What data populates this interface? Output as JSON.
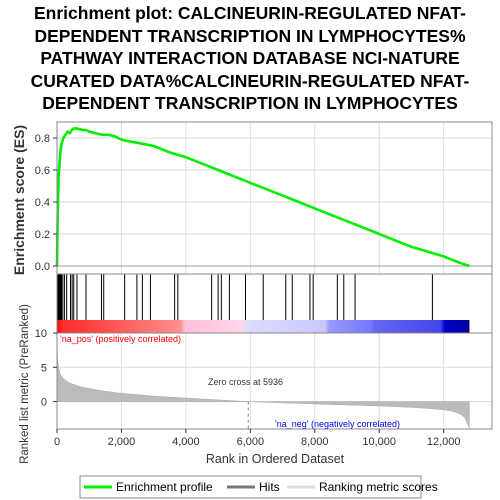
{
  "title_lines": [
    "Enrichment plot: CALCINEURIN-REGULATED NFAT-",
    "DEPENDENT TRANSCRIPTION IN LYMPHOCYTES%",
    "PATHWAY INTERACTION DATABASE NCI-NATURE",
    "CURATED DATA%CALCINEURIN-REGULATED NFAT-",
    "DEPENDENT TRANSCRIPTION IN LYMPHOCYTES"
  ],
  "colors": {
    "enrichment": "#00ee00",
    "hits": "#000000",
    "metric_fill": "#bbbbbb",
    "pos_label": "#ff0000",
    "neg_label": "#0000ff",
    "grid": "#dddddd"
  },
  "chart_data": {
    "type": "line",
    "ylabel": "Enrichment score (ES)",
    "xlabel": "Rank in Ordered Dataset",
    "ylabel_metric": "Ranked list metric (PreRanked)",
    "es_ylim": [
      -0.05,
      0.9
    ],
    "es_ticks": [
      0.0,
      0.2,
      0.4,
      0.6,
      0.8
    ],
    "es_tick_labels": [
      "0.0",
      "0.2",
      "0.4",
      "0.6",
      "0.8"
    ],
    "metric_ylim": [
      -4,
      10
    ],
    "metric_ticks": [
      10,
      5,
      0
    ],
    "metric_tick_labels": [
      "10",
      "5",
      "0"
    ],
    "xlim": [
      0,
      13500
    ],
    "x_ticks": [
      0,
      2000,
      4000,
      6000,
      8000,
      10000,
      12000
    ],
    "x_tick_labels": [
      "0",
      "2,000",
      "4,000",
      "6,000",
      "8,000",
      "10,000",
      "12,000"
    ],
    "grid": true,
    "legend_position": "bottom",
    "legend": [
      "Enrichment profile",
      "Hits",
      "Ranking metric scores"
    ],
    "zero_cross_label": "Zero cross at 5936",
    "pos_label": "'na_pos' (positively correlated)",
    "neg_label": "'na_neg' (negatively correlated)",
    "enrichment_profile": {
      "x": [
        0,
        20,
        50,
        80,
        110,
        150,
        200,
        260,
        330,
        400,
        460,
        520,
        600,
        700,
        800,
        900,
        1000,
        1200,
        1400,
        1600,
        1800,
        2000,
        2200,
        2500,
        3000,
        3500,
        4000,
        4500,
        5000,
        5500,
        6000,
        6500,
        7000,
        7500,
        8000,
        8500,
        9000,
        9500,
        10000,
        10500,
        11000,
        11500,
        12000,
        12500,
        12800
      ],
      "y": [
        0.0,
        0.3,
        0.55,
        0.65,
        0.72,
        0.77,
        0.8,
        0.82,
        0.84,
        0.83,
        0.85,
        0.86,
        0.86,
        0.855,
        0.85,
        0.85,
        0.84,
        0.83,
        0.82,
        0.82,
        0.81,
        0.79,
        0.78,
        0.77,
        0.75,
        0.71,
        0.68,
        0.64,
        0.6,
        0.56,
        0.52,
        0.48,
        0.44,
        0.4,
        0.36,
        0.32,
        0.28,
        0.24,
        0.2,
        0.16,
        0.12,
        0.09,
        0.06,
        0.02,
        0.0
      ]
    },
    "hits": [
      10,
      25,
      40,
      55,
      70,
      85,
      100,
      120,
      140,
      180,
      230,
      300,
      420,
      470,
      520,
      620,
      900,
      1380,
      1450,
      2100,
      2480,
      2650,
      2900,
      3650,
      3750,
      4800,
      5000,
      5100,
      5350,
      5850,
      6400,
      7100,
      7300,
      7850,
      7950,
      8700,
      8900,
      9250,
      11650
    ],
    "metric_profile": {
      "x": [
        0,
        20,
        50,
        100,
        200,
        400,
        700,
        1000,
        1500,
        2000,
        3000,
        4000,
        5000,
        5936,
        7000,
        8000,
        9000,
        10000,
        11000,
        11500,
        12000,
        12300,
        12500,
        12650,
        12800
      ],
      "y": [
        9.3,
        6.0,
        5.0,
        4.0,
        3.3,
        2.7,
        2.2,
        1.9,
        1.5,
        1.2,
        0.8,
        0.5,
        0.25,
        0.0,
        -0.2,
        -0.35,
        -0.5,
        -0.65,
        -0.85,
        -1.0,
        -1.2,
        -1.45,
        -1.8,
        -2.3,
        -3.9
      ]
    }
  }
}
